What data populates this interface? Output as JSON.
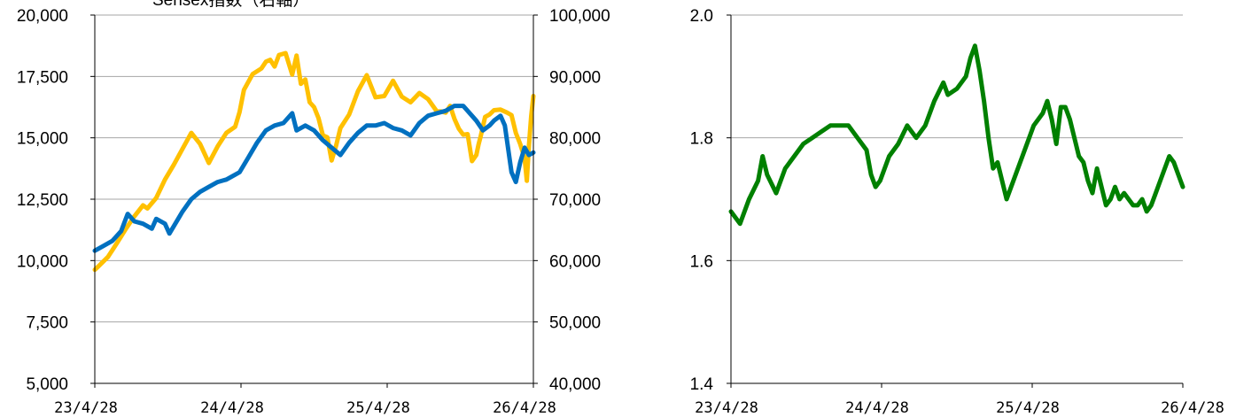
{
  "chart_data": [
    {
      "type": "line",
      "annotation": "Sensex指数（右軸）",
      "x_ticks": [
        "23/4/28",
        "24/4/28",
        "25/4/28",
        "26/4/28"
      ],
      "y_left": {
        "ticks": [
          "20,000",
          "17,500",
          "15,000",
          "12,500",
          "10,000",
          "7,500",
          "5,000"
        ],
        "ylim": [
          5000,
          20000
        ]
      },
      "y_right": {
        "ticks": [
          "100,000",
          "90,000",
          "80,000",
          "70,000",
          "60,000",
          "50,000",
          "40,000"
        ],
        "ylim": [
          40000,
          100000
        ]
      },
      "grid": true,
      "series": [
        {
          "axis": "right",
          "color": "#FFC000",
          "points": [
            [
              0,
              58500
            ],
            [
              0.01,
              59200
            ],
            [
              0.03,
              60600
            ],
            [
              0.05,
              62800
            ],
            [
              0.07,
              65100
            ],
            [
              0.09,
              67200
            ],
            [
              0.11,
              69000
            ],
            [
              0.12,
              68500
            ],
            [
              0.14,
              70200
            ],
            [
              0.16,
              73200
            ],
            [
              0.18,
              75600
            ],
            [
              0.2,
              78200
            ],
            [
              0.22,
              80800
            ],
            [
              0.24,
              79000
            ],
            [
              0.26,
              75900
            ],
            [
              0.28,
              78600
            ],
            [
              0.3,
              80800
            ],
            [
              0.32,
              81800
            ],
            [
              0.33,
              84200
            ],
            [
              0.34,
              87800
            ],
            [
              0.36,
              90400
            ],
            [
              0.38,
              91300
            ],
            [
              0.39,
              92400
            ],
            [
              0.4,
              92700
            ],
            [
              0.41,
              91600
            ],
            [
              0.42,
              93500
            ],
            [
              0.435,
              93800
            ],
            [
              0.45,
              90300
            ],
            [
              0.46,
              93400
            ],
            [
              0.47,
              88800
            ],
            [
              0.48,
              89500
            ],
            [
              0.49,
              85800
            ],
            [
              0.5,
              85000
            ],
            [
              0.51,
              83200
            ],
            [
              0.52,
              80400
            ],
            [
              0.53,
              80100
            ],
            [
              0.54,
              76300
            ],
            [
              0.55,
              78700
            ],
            [
              0.56,
              81600
            ],
            [
              0.58,
              83800
            ],
            [
              0.6,
              87600
            ],
            [
              0.62,
              90200
            ],
            [
              0.64,
              86600
            ],
            [
              0.66,
              86800
            ],
            [
              0.68,
              89300
            ],
            [
              0.7,
              86700
            ],
            [
              0.72,
              85800
            ],
            [
              0.74,
              87300
            ],
            [
              0.76,
              86300
            ],
            [
              0.78,
              84300
            ],
            [
              0.79,
              84300
            ],
            [
              0.8,
              84100
            ],
            [
              0.81,
              85200
            ],
            [
              0.82,
              83100
            ],
            [
              0.83,
              81500
            ],
            [
              0.84,
              80500
            ],
            [
              0.85,
              80600
            ],
            [
              0.86,
              76200
            ],
            [
              0.87,
              77200
            ],
            [
              0.875,
              78900
            ],
            [
              0.88,
              80300
            ],
            [
              0.89,
              83400
            ],
            [
              0.9,
              83800
            ],
            [
              0.91,
              84500
            ],
            [
              0.925,
              84600
            ],
            [
              0.94,
              84100
            ],
            [
              0.95,
              83700
            ],
            [
              0.96,
              80800
            ],
            [
              0.97,
              79000
            ],
            [
              0.98,
              76700
            ],
            [
              0.985,
              73000
            ],
            [
              0.99,
              78800
            ],
            [
              0.995,
              83500
            ],
            [
              1,
              86800
            ]
          ]
        },
        {
          "axis": "left",
          "color": "#0070C0",
          "points": [
            [
              0,
              10400
            ],
            [
              0.02,
              10600
            ],
            [
              0.04,
              10800
            ],
            [
              0.06,
              11200
            ],
            [
              0.075,
              11900
            ],
            [
              0.09,
              11600
            ],
            [
              0.11,
              11500
            ],
            [
              0.13,
              11300
            ],
            [
              0.14,
              11700
            ],
            [
              0.16,
              11500
            ],
            [
              0.17,
              11100
            ],
            [
              0.19,
              11700
            ],
            [
              0.2,
              12000
            ],
            [
              0.22,
              12500
            ],
            [
              0.24,
              12800
            ],
            [
              0.26,
              13000
            ],
            [
              0.28,
              13200
            ],
            [
              0.3,
              13300
            ],
            [
              0.32,
              13500
            ],
            [
              0.33,
              13600
            ],
            [
              0.35,
              14200
            ],
            [
              0.37,
              14800
            ],
            [
              0.39,
              15300
            ],
            [
              0.41,
              15500
            ],
            [
              0.43,
              15600
            ],
            [
              0.45,
              16000
            ],
            [
              0.46,
              15300
            ],
            [
              0.48,
              15500
            ],
            [
              0.5,
              15300
            ],
            [
              0.52,
              14900
            ],
            [
              0.54,
              14600
            ],
            [
              0.56,
              14300
            ],
            [
              0.58,
              14800
            ],
            [
              0.6,
              15200
            ],
            [
              0.62,
              15500
            ],
            [
              0.64,
              15500
            ],
            [
              0.66,
              15600
            ],
            [
              0.68,
              15400
            ],
            [
              0.7,
              15300
            ],
            [
              0.72,
              15100
            ],
            [
              0.74,
              15600
            ],
            [
              0.76,
              15900
            ],
            [
              0.78,
              16000
            ],
            [
              0.8,
              16100
            ],
            [
              0.82,
              16300
            ],
            [
              0.84,
              16300
            ],
            [
              0.855,
              16000
            ],
            [
              0.87,
              15700
            ],
            [
              0.885,
              15300
            ],
            [
              0.9,
              15500
            ],
            [
              0.91,
              15700
            ],
            [
              0.925,
              15900
            ],
            [
              0.935,
              15500
            ],
            [
              0.95,
              13600
            ],
            [
              0.96,
              13200
            ],
            [
              0.97,
              14000
            ],
            [
              0.98,
              14600
            ],
            [
              0.99,
              14300
            ],
            [
              1,
              14400
            ]
          ]
        }
      ]
    },
    {
      "type": "line",
      "x_ticks": [
        "23/4/28",
        "24/4/28",
        "25/4/28",
        "26/4/28"
      ],
      "y": {
        "ticks": [
          "2.0",
          "1.8",
          "1.6",
          "1.4"
        ],
        "ylim": [
          1.4,
          2.0
        ]
      },
      "grid": true,
      "series": [
        {
          "color": "#008000",
          "points": [
            [
              0,
              1.68
            ],
            [
              0.02,
              1.66
            ],
            [
              0.04,
              1.7
            ],
            [
              0.06,
              1.73
            ],
            [
              0.07,
              1.77
            ],
            [
              0.08,
              1.74
            ],
            [
              0.1,
              1.71
            ],
            [
              0.12,
              1.75
            ],
            [
              0.14,
              1.77
            ],
            [
              0.16,
              1.79
            ],
            [
              0.18,
              1.8
            ],
            [
              0.2,
              1.81
            ],
            [
              0.22,
              1.82
            ],
            [
              0.24,
              1.82
            ],
            [
              0.26,
              1.82
            ],
            [
              0.28,
              1.8
            ],
            [
              0.3,
              1.78
            ],
            [
              0.31,
              1.74
            ],
            [
              0.32,
              1.72
            ],
            [
              0.33,
              1.73
            ],
            [
              0.35,
              1.77
            ],
            [
              0.37,
              1.79
            ],
            [
              0.39,
              1.82
            ],
            [
              0.41,
              1.8
            ],
            [
              0.43,
              1.82
            ],
            [
              0.45,
              1.86
            ],
            [
              0.47,
              1.89
            ],
            [
              0.48,
              1.87
            ],
            [
              0.5,
              1.88
            ],
            [
              0.52,
              1.9
            ],
            [
              0.53,
              1.93
            ],
            [
              0.54,
              1.95
            ],
            [
              0.55,
              1.91
            ],
            [
              0.56,
              1.86
            ],
            [
              0.57,
              1.8
            ],
            [
              0.58,
              1.75
            ],
            [
              0.59,
              1.76
            ],
            [
              0.6,
              1.73
            ],
            [
              0.61,
              1.7
            ],
            [
              0.62,
              1.72
            ],
            [
              0.63,
              1.74
            ],
            [
              0.65,
              1.78
            ],
            [
              0.67,
              1.82
            ],
            [
              0.69,
              1.84
            ],
            [
              0.7,
              1.86
            ],
            [
              0.71,
              1.83
            ],
            [
              0.72,
              1.79
            ],
            [
              0.73,
              1.85
            ],
            [
              0.74,
              1.85
            ],
            [
              0.75,
              1.83
            ],
            [
              0.76,
              1.8
            ],
            [
              0.77,
              1.77
            ],
            [
              0.78,
              1.76
            ],
            [
              0.79,
              1.73
            ],
            [
              0.8,
              1.71
            ],
            [
              0.81,
              1.75
            ],
            [
              0.82,
              1.72
            ],
            [
              0.83,
              1.69
            ],
            [
              0.84,
              1.7
            ],
            [
              0.85,
              1.72
            ],
            [
              0.86,
              1.7
            ],
            [
              0.87,
              1.71
            ],
            [
              0.88,
              1.7
            ],
            [
              0.89,
              1.69
            ],
            [
              0.9,
              1.69
            ],
            [
              0.91,
              1.7
            ],
            [
              0.92,
              1.68
            ],
            [
              0.93,
              1.69
            ],
            [
              0.94,
              1.71
            ],
            [
              0.95,
              1.73
            ],
            [
              0.96,
              1.75
            ],
            [
              0.97,
              1.77
            ],
            [
              0.98,
              1.76
            ],
            [
              0.99,
              1.74
            ],
            [
              1,
              1.72
            ]
          ]
        }
      ]
    }
  ]
}
